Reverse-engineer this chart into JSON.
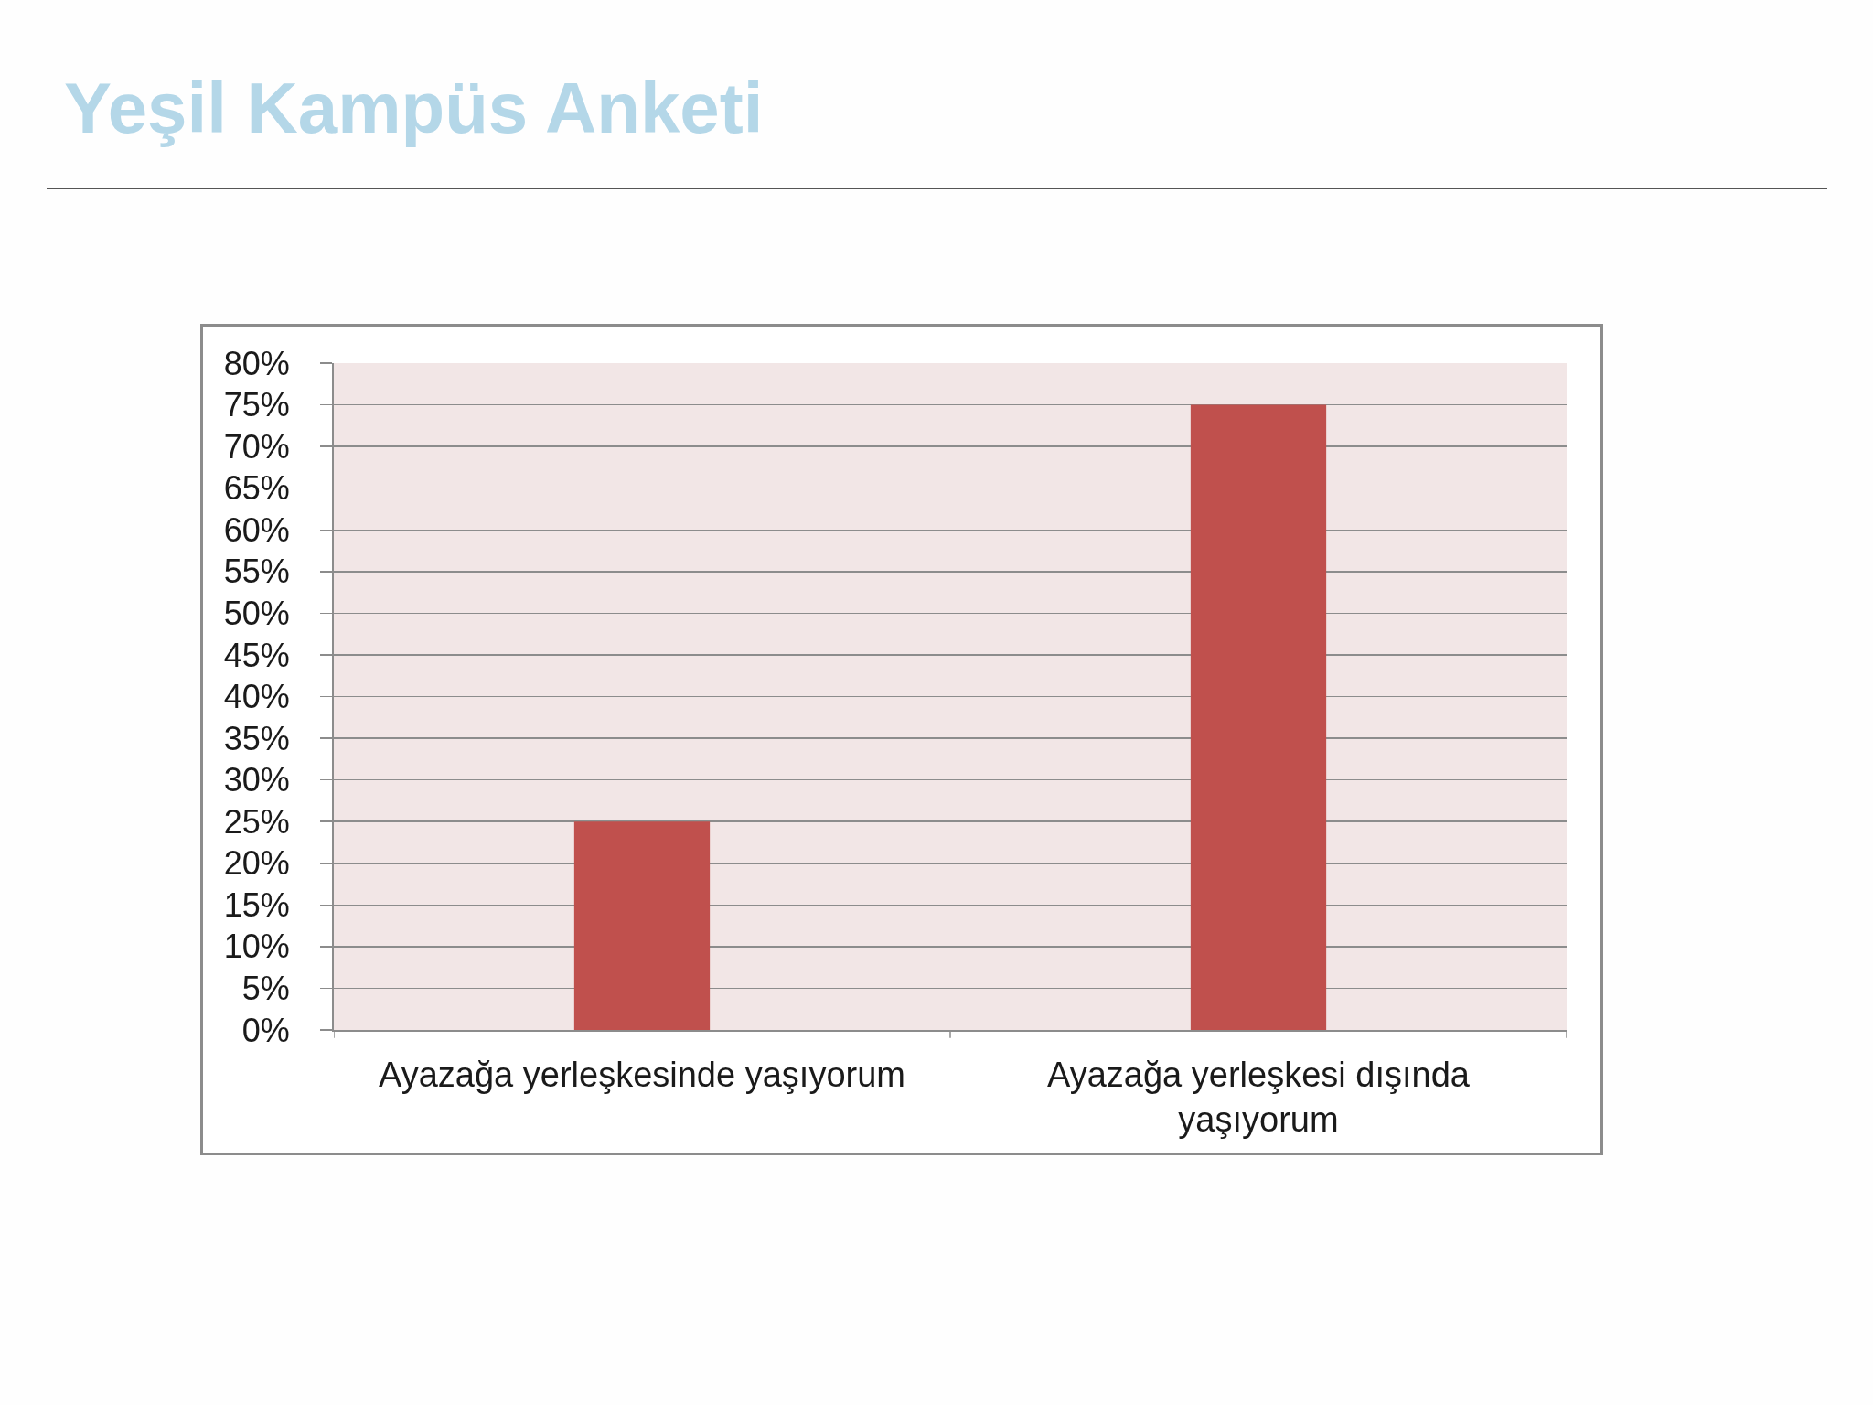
{
  "chart_data": {
    "type": "bar",
    "title": "Yeşil Kampüs Anketi",
    "categories": [
      "Ayazağa yerleşkesinde yaşıyorum",
      "Ayazağa yerleşkesi dışında yaşıyorum"
    ],
    "values": [
      25,
      75
    ],
    "color": "#c0504d",
    "ylim": [
      0,
      80
    ],
    "yticks": [
      {
        "value": 0,
        "label": "0%"
      },
      {
        "value": 5,
        "label": "5%"
      },
      {
        "value": 10,
        "label": "10%"
      },
      {
        "value": 15,
        "label": "15%"
      },
      {
        "value": 20,
        "label": "20%"
      },
      {
        "value": 25,
        "label": "25%"
      },
      {
        "value": 30,
        "label": "30%"
      },
      {
        "value": 35,
        "label": "35%"
      },
      {
        "value": 40,
        "label": "40%"
      },
      {
        "value": 45,
        "label": "45%"
      },
      {
        "value": 50,
        "label": "50%"
      },
      {
        "value": 55,
        "label": "55%"
      },
      {
        "value": 60,
        "label": "60%"
      },
      {
        "value": 65,
        "label": "65%"
      },
      {
        "value": 70,
        "label": "70%"
      },
      {
        "value": 75,
        "label": "75%"
      },
      {
        "value": 80,
        "label": "80%"
      }
    ],
    "grid": "y"
  }
}
